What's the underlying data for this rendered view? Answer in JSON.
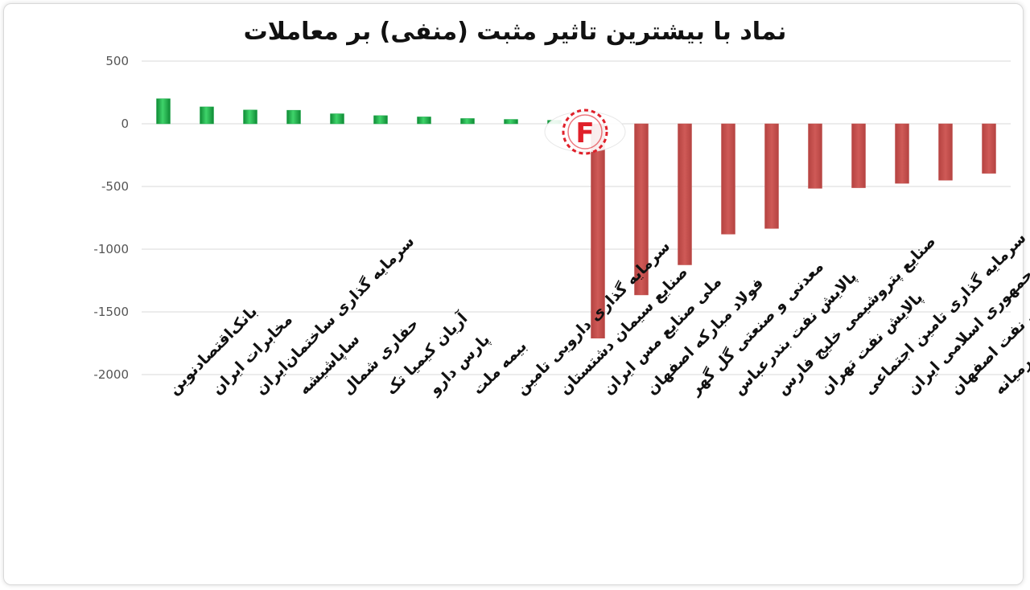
{
  "chart_data": {
    "type": "bar",
    "title": "نماد با بیشترین تاثیر مثبت (منفی) بر معاملات",
    "xlabel": "",
    "ylabel": "",
    "ylim": [
      -2000,
      500
    ],
    "yticks": [
      500,
      0,
      -500,
      -1000,
      -1500,
      -2000
    ],
    "grid": true,
    "legend": "none",
    "positive_color": "#1ea84a",
    "negative_color": "#c0504d",
    "categories": [
      "بانک‌اقتصادنوین",
      "مخابرات ایران",
      "سرمایه گذاری ساختمان‌ایران",
      "ساپاشیشه",
      "حفاری شمال",
      "آریان کیمیا تک",
      "پارس دارو",
      "بیمه ملت",
      "سرمایه گذاری دارویی تامین",
      "صنایع سیمان دشتستان",
      "ملی صنایع مس ایران",
      "فولاد مبارکه اصفهان",
      "معدنی و صنعتی گل گهر",
      "پالایش نفت بندرعباس",
      "صنایع پتروشیمی خلیج فارس",
      "پالایش نفت تهران",
      "سرمایه گذاری تامین اجتماعی",
      "کشتیرانی جمهوری اسلامی ایران",
      "پالایش نفت اصفهان",
      "توسعه معادن وص.معدنی خاورمیانه"
    ],
    "values": [
      200,
      135,
      110,
      108,
      80,
      65,
      55,
      42,
      35,
      28,
      -1710,
      -1365,
      -1125,
      -880,
      -835,
      -515,
      -510,
      -475,
      -450,
      -395
    ]
  },
  "watermark": {
    "text": "F"
  }
}
